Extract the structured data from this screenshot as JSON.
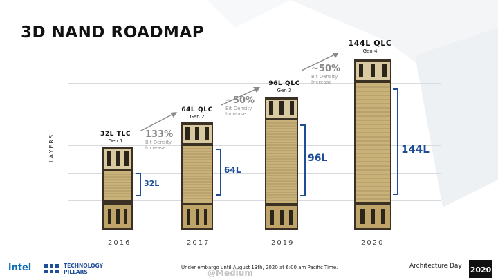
{
  "slide": {
    "title": "3D NAND ROADMAP",
    "axis_label": "LAYERS"
  },
  "generations": [
    {
      "name": "32L TLC",
      "gen": "Gen 1",
      "year": "2016",
      "layers": "32L"
    },
    {
      "name": "64L QLC",
      "gen": "Gen 2",
      "year": "2017",
      "layers": "64L"
    },
    {
      "name": "96L QLC",
      "gen": "Gen 3",
      "year": "2019",
      "layers": "96L"
    },
    {
      "name": "144L QLC",
      "gen": "Gen 4",
      "year": "2020",
      "layers": "144L"
    }
  ],
  "density_steps": [
    {
      "pct": "133%",
      "line1": "Bit Density",
      "line2": "Increase"
    },
    {
      "pct": "~50%",
      "line1": "Bit Density",
      "line2": "Increase"
    },
    {
      "pct": "~50%",
      "line1": "Bit Density",
      "line2": "Increase"
    }
  ],
  "footer": {
    "intel": "intel",
    "pillars_line1": "TECHNOLOGY",
    "pillars_line2": "PILLARS",
    "note": "Under embargo until August 13th, 2020 at 6:00 am Pacific Time.",
    "event": "Architecture Day",
    "badge": "2020",
    "watermark": "@Medium"
  },
  "colors": {
    "bracket_blue": "#1f4e99",
    "nand_gold": "#c9b27a",
    "nand_dark": "#2b241a"
  }
}
